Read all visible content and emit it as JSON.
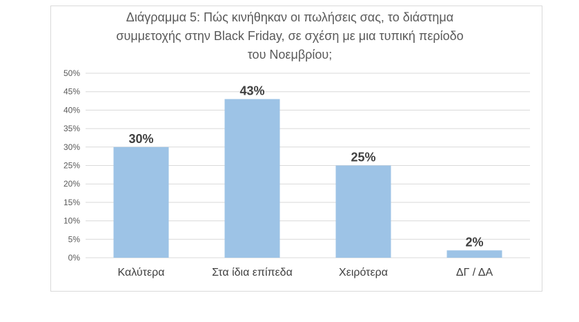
{
  "chart_data": {
    "type": "bar",
    "title_lines": [
      "Διάγραμμα 5: Πώς κινήθηκαν οι πωλήσεις σας, το διάστημα",
      "συμμετοχής στην Black Friday, σε σχέση με μια τυπική περίοδο",
      "του Νοεμβρίου;"
    ],
    "categories": [
      "Καλύτερα",
      "Στα ίδια επίπεδα",
      "Χειρότερα",
      "ΔΓ / ΔΑ"
    ],
    "values": [
      30,
      43,
      25,
      2
    ],
    "data_labels": [
      "30%",
      "43%",
      "25%",
      "2%"
    ],
    "y_ticks": [
      0,
      5,
      10,
      15,
      20,
      25,
      30,
      35,
      40,
      45,
      50
    ],
    "y_tick_labels": [
      "0%",
      "5%",
      "10%",
      "15%",
      "20%",
      "25%",
      "30%",
      "35%",
      "40%",
      "45%",
      "50%"
    ],
    "ylim": [
      0,
      50
    ],
    "grid": true,
    "legend": "none",
    "bar_color": "#9dc3e6",
    "grid_color": "#d9d9d9"
  }
}
